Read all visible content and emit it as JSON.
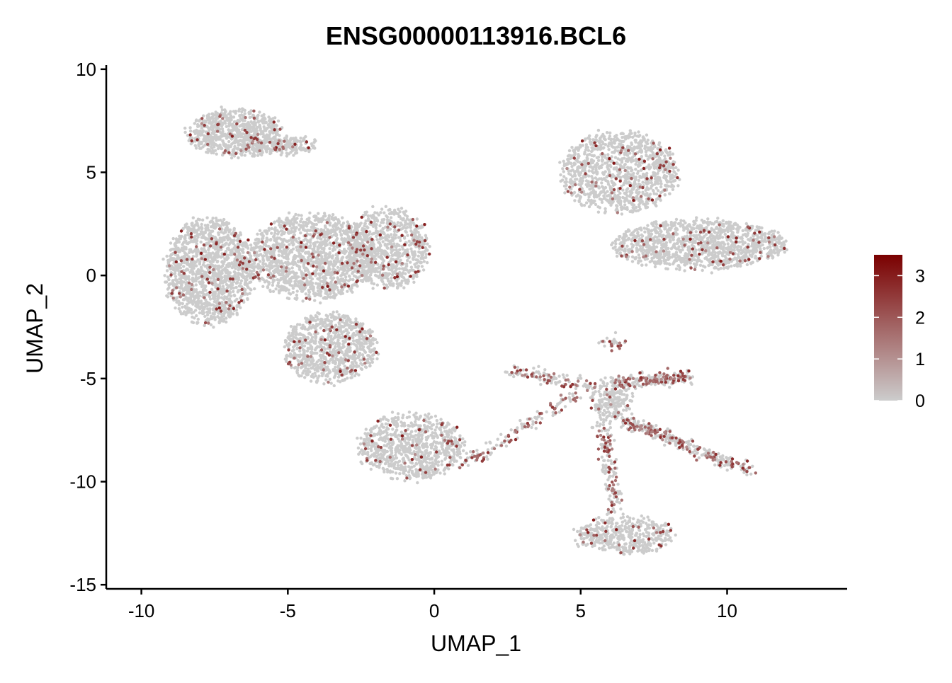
{
  "chart_data": {
    "type": "scatter",
    "title": "ENSG00000113916.BCL6",
    "xlabel": "UMAP_1",
    "ylabel": "UMAP_2",
    "xlim": [
      -11.2,
      14.1
    ],
    "ylim": [
      -15.2,
      10.2
    ],
    "x_ticks": [
      -10,
      -5,
      0,
      5,
      10
    ],
    "y_ticks": [
      10,
      5,
      0,
      -5,
      -10,
      -15
    ],
    "grid": false,
    "legend": {
      "placement": "right",
      "type": "colorbar",
      "min": 0,
      "max": 3.5,
      "ticks": [
        3,
        2,
        1,
        0
      ]
    },
    "colors": {
      "low": "#cccccc",
      "high": "#7a0000",
      "axis": "#000000"
    },
    "point_size": "small",
    "clusters": [
      {
        "name": "top-left-lobe",
        "cx": -6.8,
        "cy": 6.9,
        "rx": 1.6,
        "ry": 1.1,
        "n": 700
      },
      {
        "name": "top-left-tail",
        "cx": -5.3,
        "cy": 6.3,
        "rx": 1.3,
        "ry": 0.4,
        "n": 220
      },
      {
        "name": "left-mass",
        "cx": -7.7,
        "cy": 0.2,
        "rx": 1.5,
        "ry": 2.6,
        "n": 1400
      },
      {
        "name": "center-mass",
        "cx": -4.2,
        "cy": 0.9,
        "rx": 2.2,
        "ry": 2.1,
        "n": 1500
      },
      {
        "name": "center-right-mass",
        "cx": -1.6,
        "cy": 1.3,
        "rx": 1.4,
        "ry": 2.0,
        "n": 800
      },
      {
        "name": "lower-neck",
        "cx": -3.6,
        "cy": -3.5,
        "rx": 1.6,
        "ry": 1.7,
        "n": 900
      },
      {
        "name": "bottom-lobe",
        "cx": -0.8,
        "cy": -8.3,
        "rx": 1.8,
        "ry": 1.6,
        "n": 850
      },
      {
        "name": "top-right-lobe",
        "cx": 6.3,
        "cy": 5.0,
        "rx": 2.0,
        "ry": 2.0,
        "n": 1100
      },
      {
        "name": "right-tail",
        "cx": 9.0,
        "cy": 1.5,
        "rx": 3.0,
        "ry": 1.2,
        "n": 1200
      },
      {
        "name": "bottom-right-blob",
        "cx": 6.5,
        "cy": -12.6,
        "rx": 1.7,
        "ry": 0.9,
        "n": 450
      },
      {
        "name": "branch-hub",
        "cx": 6.0,
        "cy": -6.0,
        "rx": 0.7,
        "ry": 1.0,
        "n": 220
      }
    ],
    "branches": [
      {
        "name": "bridge",
        "x1": 1.0,
        "y1": -9.2,
        "x2": 4.8,
        "y2": -5.8,
        "n": 140
      },
      {
        "name": "upper-left-arm",
        "x1": 2.4,
        "y1": -4.5,
        "x2": 5.6,
        "y2": -5.5,
        "n": 110
      },
      {
        "name": "right-arm",
        "x1": 6.2,
        "y1": -5.2,
        "x2": 8.7,
        "y2": -4.9,
        "n": 200
      },
      {
        "name": "lower-right-arm",
        "x1": 6.5,
        "y1": -7.0,
        "x2": 10.8,
        "y2": -9.5,
        "n": 320
      },
      {
        "name": "stem",
        "x1": 5.7,
        "y1": -7.2,
        "x2": 6.2,
        "y2": -11.5,
        "n": 150
      },
      {
        "name": "top-stub",
        "x1": 5.8,
        "y1": -3.2,
        "x2": 6.4,
        "y2": -3.4,
        "n": 30
      }
    ]
  }
}
